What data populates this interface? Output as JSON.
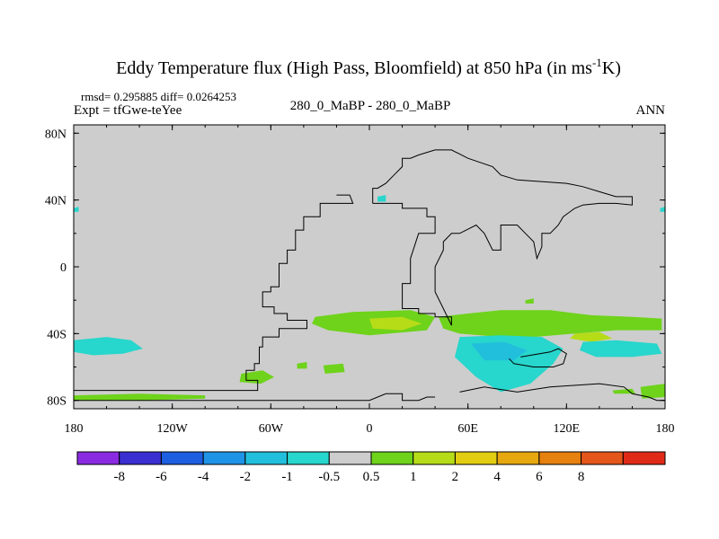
{
  "chart_data": {
    "type": "contour-map",
    "title": "Eddy Temperature flux (High Pass, Bloomfield) at 850 hPa (in ms",
    "title_superscript": "-1",
    "title_suffix": "K)",
    "stats": "rmsd= 0.295885 diff= 0.0264253",
    "left_label": "Expt = tfGwe-teYee",
    "center_label": "280_0_MaBP - 280_0_MaBP",
    "right_label": "ANN",
    "x_ticks": [
      {
        "value": -180,
        "label": "180"
      },
      {
        "value": -120,
        "label": "120W"
      },
      {
        "value": -60,
        "label": "60W"
      },
      {
        "value": 0,
        "label": "0"
      },
      {
        "value": 60,
        "label": "60E"
      },
      {
        "value": 120,
        "label": "120E"
      },
      {
        "value": 180,
        "label": "180"
      }
    ],
    "y_ticks": [
      {
        "value": 80,
        "label": "80N"
      },
      {
        "value": 40,
        "label": "40N"
      },
      {
        "value": 0,
        "label": "0"
      },
      {
        "value": -40,
        "label": "40S"
      },
      {
        "value": -80,
        "label": "80S"
      }
    ],
    "xlim": [
      -180,
      180
    ],
    "ylim": [
      -85,
      85
    ],
    "colorbar": {
      "colors": [
        "#8a2be2",
        "#3a2fd0",
        "#1e5ee0",
        "#1f94e6",
        "#22bfdc",
        "#27d6cc",
        "#cdcdcd",
        "#6ed31a",
        "#b6dc18",
        "#e2cd12",
        "#e6a80e",
        "#e6800e",
        "#e5561a",
        "#e02a18"
      ],
      "labels": [
        "-8",
        "-6",
        "-4",
        "-2",
        "-1",
        "-0.5",
        "0.5",
        "1",
        "2",
        "4",
        "6",
        "8"
      ]
    },
    "regions": [
      {
        "category": "pos_1",
        "color": "#6ed31a",
        "points": [
          [
            -33,
            -30
          ],
          [
            -10,
            -27
          ],
          [
            25,
            -26
          ],
          [
            40,
            -30
          ],
          [
            35,
            -38
          ],
          [
            0,
            -41
          ],
          [
            -25,
            -38
          ],
          [
            -35,
            -34
          ]
        ]
      },
      {
        "category": "pos_2",
        "color": "#b6dc18",
        "points": [
          [
            0,
            -31
          ],
          [
            20,
            -30
          ],
          [
            32,
            -34
          ],
          [
            20,
            -38
          ],
          [
            2,
            -37
          ]
        ]
      },
      {
        "category": "pos_1",
        "color": "#6ed31a",
        "points": [
          [
            42,
            -30
          ],
          [
            60,
            -28
          ],
          [
            80,
            -26
          ],
          [
            110,
            -26
          ],
          [
            135,
            -29
          ],
          [
            160,
            -30
          ],
          [
            178,
            -31
          ],
          [
            178,
            -38
          ],
          [
            150,
            -38
          ],
          [
            125,
            -40
          ],
          [
            100,
            -42
          ],
          [
            80,
            -42
          ],
          [
            55,
            -40
          ],
          [
            45,
            -37
          ]
        ]
      },
      {
        "category": "pos_2",
        "color": "#b6dc18",
        "points": [
          [
            125,
            -40
          ],
          [
            140,
            -39
          ],
          [
            148,
            -43
          ],
          [
            135,
            -45
          ],
          [
            122,
            -43
          ]
        ]
      },
      {
        "category": "neg_0.5",
        "color": "#27d6cc",
        "points": [
          [
            -180,
            -44
          ],
          [
            -160,
            -42
          ],
          [
            -145,
            -44
          ],
          [
            -138,
            -49
          ],
          [
            -150,
            -52
          ],
          [
            -168,
            -53
          ],
          [
            -180,
            -51
          ]
        ]
      },
      {
        "category": "neg_0.5",
        "color": "#27d6cc",
        "points": [
          [
            55,
            -42
          ],
          [
            80,
            -41
          ],
          [
            105,
            -42
          ],
          [
            118,
            -49
          ],
          [
            112,
            -58
          ],
          [
            98,
            -70
          ],
          [
            80,
            -75
          ],
          [
            65,
            -66
          ],
          [
            52,
            -54
          ]
        ]
      },
      {
        "category": "neg_1",
        "color": "#22bfdc",
        "points": [
          [
            62,
            -46
          ],
          [
            82,
            -45
          ],
          [
            96,
            -50
          ],
          [
            88,
            -56
          ],
          [
            70,
            -56
          ]
        ]
      },
      {
        "category": "neg_0.5",
        "color": "#27d6cc",
        "points": [
          [
            130,
            -45
          ],
          [
            150,
            -44
          ],
          [
            175,
            -46
          ],
          [
            178,
            -52
          ],
          [
            160,
            -54
          ],
          [
            138,
            -54
          ],
          [
            128,
            -50
          ]
        ]
      },
      {
        "category": "pos_1",
        "color": "#6ed31a",
        "points": [
          [
            -180,
            -77
          ],
          [
            -140,
            -76
          ],
          [
            -100,
            -77
          ],
          [
            -100,
            -79
          ],
          [
            -140,
            -80
          ],
          [
            -180,
            -80
          ]
        ]
      },
      {
        "category": "pos_1",
        "color": "#6ed31a",
        "points": [
          [
            -78,
            -64
          ],
          [
            -65,
            -62
          ],
          [
            -58,
            -66
          ],
          [
            -66,
            -70
          ],
          [
            -79,
            -69
          ]
        ]
      },
      {
        "category": "pos_1",
        "color": "#6ed31a",
        "points": [
          [
            -28,
            -59
          ],
          [
            -16,
            -58
          ],
          [
            -15,
            -63
          ],
          [
            -27,
            -64
          ]
        ]
      },
      {
        "category": "pos_1",
        "color": "#6ed31a",
        "points": [
          [
            -44,
            -58
          ],
          [
            -38,
            -57
          ],
          [
            -38,
            -61
          ],
          [
            -44,
            -61
          ]
        ]
      },
      {
        "category": "pos_1",
        "color": "#6ed31a",
        "points": [
          [
            148,
            -74
          ],
          [
            160,
            -73
          ],
          [
            162,
            -76
          ],
          [
            149,
            -76
          ]
        ]
      },
      {
        "category": "pos_1",
        "color": "#6ed31a",
        "points": [
          [
            165,
            -72
          ],
          [
            180,
            -70
          ],
          [
            180,
            -78
          ],
          [
            166,
            -79
          ]
        ]
      },
      {
        "category": "pos_1",
        "color": "#6ed31a",
        "points": [
          [
            95,
            -20
          ],
          [
            100,
            -19
          ],
          [
            100,
            -22
          ],
          [
            95,
            -22
          ]
        ]
      },
      {
        "category": "neg_0.5",
        "color": "#27d6cc",
        "points": [
          [
            5,
            42
          ],
          [
            10,
            43
          ],
          [
            10,
            39
          ],
          [
            5,
            39
          ]
        ]
      },
      {
        "category": "neg_0.5",
        "color": "#27d6cc",
        "points": [
          [
            -180,
            35
          ],
          [
            -177,
            36
          ],
          [
            -177,
            33
          ],
          [
            -180,
            33
          ]
        ]
      },
      {
        "category": "neg_0.5",
        "color": "#27d6cc",
        "points": [
          [
            177,
            35
          ],
          [
            180,
            36
          ],
          [
            180,
            33
          ],
          [
            177,
            33
          ]
        ]
      }
    ],
    "coastlines": [
      {
        "name": "americas",
        "points": [
          [
            -20,
            43
          ],
          [
            -12,
            43
          ],
          [
            -10,
            38
          ],
          [
            -30,
            38
          ],
          [
            -30,
            30
          ],
          [
            -40,
            30
          ],
          [
            -40,
            22
          ],
          [
            -45,
            22
          ],
          [
            -45,
            10
          ],
          [
            -50,
            10
          ],
          [
            -50,
            2
          ],
          [
            -55,
            2
          ],
          [
            -55,
            -12
          ],
          [
            -60,
            -12
          ],
          [
            -60,
            -15
          ],
          [
            -65,
            -15
          ],
          [
            -65,
            -24
          ],
          [
            -58,
            -24
          ],
          [
            -58,
            -28
          ],
          [
            -50,
            -28
          ],
          [
            -50,
            -32
          ],
          [
            -38,
            -32
          ],
          [
            -38,
            -37
          ],
          [
            -55,
            -37
          ],
          [
            -55,
            -42
          ],
          [
            -65,
            -42
          ],
          [
            -65,
            -48
          ],
          [
            -67,
            -48
          ],
          [
            -67,
            -58
          ],
          [
            -70,
            -58
          ],
          [
            -70,
            -62
          ],
          [
            -75,
            -62
          ],
          [
            -75,
            -68
          ],
          [
            -68,
            -68
          ],
          [
            -68,
            -74
          ],
          [
            -180,
            -74
          ]
        ]
      },
      {
        "name": "west_africa_europe",
        "points": [
          [
            2,
            38
          ],
          [
            20,
            38
          ],
          [
            20,
            35
          ],
          [
            35,
            35
          ],
          [
            35,
            30
          ],
          [
            40,
            30
          ],
          [
            40,
            20
          ],
          [
            30,
            20
          ],
          [
            25,
            5
          ],
          [
            25,
            -10
          ],
          [
            20,
            -10
          ],
          [
            20,
            -25
          ],
          [
            30,
            -25
          ],
          [
            30,
            -28
          ],
          [
            40,
            -28
          ],
          [
            40,
            -30
          ],
          [
            50,
            -30
          ],
          [
            50,
            -35
          ]
        ]
      },
      {
        "name": "east_africa_eurasia",
        "points": [
          [
            50,
            -35
          ],
          [
            45,
            -25
          ],
          [
            40,
            -15
          ],
          [
            40,
            0
          ],
          [
            45,
            10
          ],
          [
            45,
            15
          ],
          [
            50,
            20
          ],
          [
            55,
            20
          ],
          [
            65,
            25
          ],
          [
            70,
            20
          ],
          [
            75,
            10
          ],
          [
            80,
            10
          ],
          [
            80,
            25
          ],
          [
            90,
            25
          ],
          [
            95,
            20
          ],
          [
            100,
            15
          ],
          [
            102,
            5
          ],
          [
            105,
            12
          ],
          [
            105,
            20
          ],
          [
            110,
            20
          ],
          [
            115,
            25
          ],
          [
            118,
            30
          ],
          [
            125,
            35
          ],
          [
            130,
            37
          ],
          [
            140,
            38
          ],
          [
            150,
            38
          ],
          [
            160,
            37
          ],
          [
            160,
            42
          ],
          [
            150,
            42
          ],
          [
            140,
            45
          ],
          [
            130,
            48
          ],
          [
            120,
            50
          ],
          [
            90,
            52
          ],
          [
            80,
            55
          ],
          [
            75,
            60
          ],
          [
            60,
            65
          ],
          [
            50,
            70
          ],
          [
            40,
            70
          ],
          [
            30,
            67
          ],
          [
            25,
            65
          ],
          [
            20,
            65
          ],
          [
            20,
            60
          ],
          [
            15,
            55
          ],
          [
            10,
            50
          ],
          [
            5,
            47
          ],
          [
            2,
            47
          ],
          [
            2,
            38
          ]
        ]
      },
      {
        "name": "australia",
        "points": [
          [
            92,
            -54
          ],
          [
            110,
            -51
          ],
          [
            115,
            -49
          ],
          [
            120,
            -52
          ],
          [
            118,
            -58
          ],
          [
            112,
            -60
          ],
          [
            100,
            -60
          ],
          [
            88,
            -58
          ],
          [
            85,
            -55
          ]
        ]
      },
      {
        "name": "antarctica_west",
        "points": [
          [
            -180,
            -74
          ],
          [
            -180,
            -80
          ],
          [
            -155,
            -80
          ],
          [
            -100,
            -80
          ],
          [
            -30,
            -80
          ],
          [
            0,
            -80
          ],
          [
            10,
            -76
          ],
          [
            20,
            -76
          ],
          [
            20,
            -80
          ],
          [
            30,
            -80
          ],
          [
            35,
            -78
          ],
          [
            40,
            -78
          ]
        ]
      },
      {
        "name": "antarctica_east",
        "points": [
          [
            55,
            -75
          ],
          [
            70,
            -72
          ],
          [
            90,
            -75
          ],
          [
            110,
            -72
          ],
          [
            140,
            -70
          ],
          [
            155,
            -72
          ],
          [
            160,
            -76
          ],
          [
            170,
            -78
          ],
          [
            175,
            -80
          ],
          [
            180,
            -80
          ]
        ]
      }
    ]
  }
}
